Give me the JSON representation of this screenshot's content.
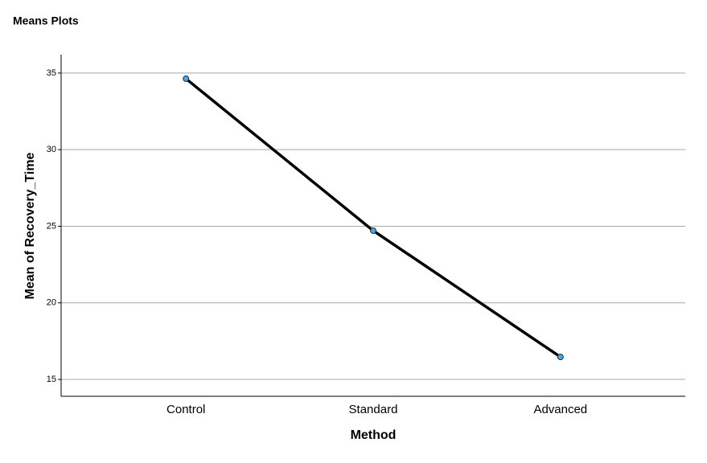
{
  "chart_data": {
    "type": "line",
    "title": "Means Plots",
    "x_label": "Method",
    "y_label": "Mean of Recovery_Time",
    "categories": [
      "Control",
      "Standard",
      "Advanced"
    ],
    "values": [
      34.63,
      24.71,
      16.47
    ],
    "color": "#000000",
    "marker_color": "#4ba6e6",
    "ylim": [
      13.9,
      36.2
    ],
    "yticks": [
      15,
      20,
      25,
      30,
      35
    ],
    "grid": true
  }
}
